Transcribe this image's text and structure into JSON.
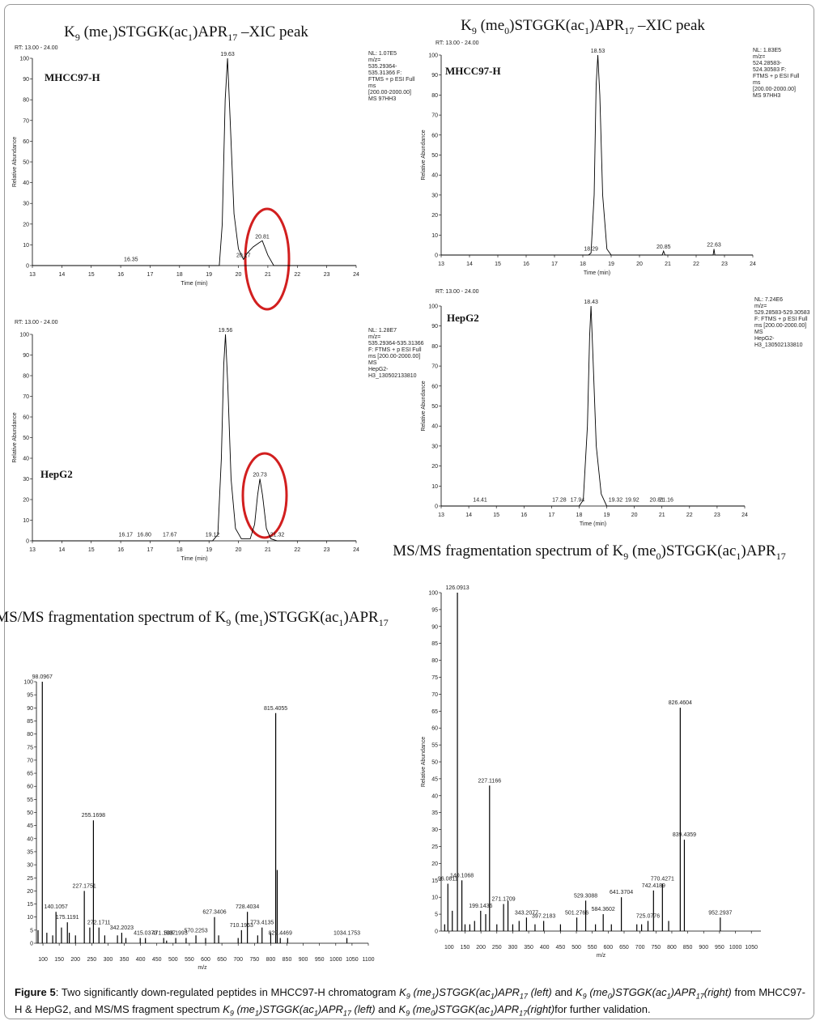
{
  "chart_data": [
    {
      "type": "line",
      "title": [
        "K",
        "9",
        " (me",
        "1",
        ")STGGK(ac",
        "1",
        ")APR",
        "17",
        " –XIC peak"
      ],
      "rt_label": "RT: 13.00 - 24.00",
      "sample": "MHCC97-H",
      "info": [
        "NL: 1.07E5",
        "m/z=",
        "535.29364-",
        "535.31366 F:",
        "FTMS + p ESI Full",
        "ms",
        "[200.00-2000.00]",
        "MS 97HH3"
      ],
      "x_label": "Time (min)",
      "y_label": "Relative Abundance",
      "x": [
        13,
        16.35,
        19.35,
        19.45,
        19.55,
        19.63,
        19.72,
        19.85,
        20.0,
        20.17,
        20.3,
        20.5,
        20.7,
        20.81,
        21.0,
        21.2,
        24
      ],
      "values": [
        0,
        0,
        0,
        20,
        80,
        100,
        70,
        25,
        8,
        3,
        6,
        9,
        11,
        12,
        5,
        0,
        0
      ],
      "color": "#000000",
      "xlim": [
        13,
        24
      ],
      "xticks": [
        13,
        14,
        15,
        16,
        17,
        18,
        19,
        20,
        21,
        22,
        23,
        24
      ],
      "ylim": [
        0,
        100
      ],
      "yticks": [
        0,
        10,
        20,
        30,
        40,
        50,
        60,
        70,
        80,
        90,
        100
      ],
      "annotations": [
        {
          "text": "19.63",
          "x": 19.63,
          "y": 100
        },
        {
          "text": "16.35",
          "x": 16.35,
          "y": 1
        },
        {
          "text": "20.17",
          "x": 20.17,
          "y": 3
        },
        {
          "text": "20.81",
          "x": 20.81,
          "y": 12
        }
      ]
    },
    {
      "type": "line",
      "title": [
        "K",
        "9",
        " (me",
        "0",
        ")STGGK(ac",
        "1",
        ")APR",
        "17",
        " –XIC peak"
      ],
      "rt_label": "RT: 13.00 - 24.00",
      "sample": "MHCC97-H",
      "info": [
        "NL: 1.83E5",
        "m/z=",
        "524.28583-",
        "524.30583 F:",
        "FTMS + p ESI Full",
        "ms",
        "[200.00-2000.00]",
        "MS 97HH3"
      ],
      "x_label": "Time (min)",
      "y_label": "Relative Abundance",
      "x": [
        13,
        18.2,
        18.29,
        18.4,
        18.47,
        18.53,
        18.6,
        18.7,
        18.85,
        19,
        20.8,
        20.85,
        20.9,
        22.6,
        22.63,
        22.66,
        24
      ],
      "values": [
        0,
        0,
        1,
        30,
        85,
        100,
        80,
        30,
        3,
        0,
        0,
        2,
        0,
        0,
        3,
        0,
        0
      ],
      "color": "#000000",
      "xlim": [
        13,
        24
      ],
      "xticks": [
        13,
        14,
        15,
        16,
        17,
        18,
        19,
        20,
        21,
        22,
        23,
        24
      ],
      "ylim": [
        0,
        100
      ],
      "yticks": [
        0,
        10,
        20,
        30,
        40,
        50,
        60,
        70,
        80,
        90,
        100
      ],
      "annotations": [
        {
          "text": "18.53",
          "x": 18.53,
          "y": 100
        },
        {
          "text": "18.29",
          "x": 18.29,
          "y": 1
        },
        {
          "text": "20.85",
          "x": 20.85,
          "y": 2
        },
        {
          "text": "22.63",
          "x": 22.63,
          "y": 3
        }
      ]
    },
    {
      "type": "line",
      "rt_label": "RT: 13.00 - 24.00",
      "sample": "HepG2",
      "info": [
        "NL: 1.28E7",
        "m/z=",
        "535.29364-535.31366",
        "F: FTMS + p ESI Full",
        "ms [200.00-2000.00]",
        "MS",
        "HepG2-",
        "H3_130502133810"
      ],
      "x_label": "Time (min)",
      "y_label": "Relative Abundance",
      "x": [
        13,
        19.12,
        19.3,
        19.42,
        19.5,
        19.56,
        19.64,
        19.75,
        19.9,
        20.1,
        20.4,
        20.55,
        20.65,
        20.73,
        20.82,
        20.95,
        21.1,
        21.32,
        24
      ],
      "values": [
        0,
        0,
        3,
        40,
        85,
        100,
        75,
        30,
        6,
        1,
        1,
        8,
        22,
        30,
        22,
        6,
        1,
        0,
        0
      ],
      "color": "#000000",
      "xlim": [
        13,
        24
      ],
      "xticks": [
        13,
        14,
        15,
        16,
        17,
        18,
        19,
        20,
        21,
        22,
        23,
        24
      ],
      "ylim": [
        0,
        100
      ],
      "yticks": [
        0,
        10,
        20,
        30,
        40,
        50,
        60,
        70,
        80,
        90,
        100
      ],
      "annotations": [
        {
          "text": "19.56",
          "x": 19.56,
          "y": 100
        },
        {
          "text": "20.73",
          "x": 20.73,
          "y": 30
        },
        {
          "text": "16.17",
          "x": 16.17,
          "y": 1
        },
        {
          "text": "16.80",
          "x": 16.8,
          "y": 1
        },
        {
          "text": "17.67",
          "x": 17.67,
          "y": 1
        },
        {
          "text": "19.12",
          "x": 19.12,
          "y": 1
        },
        {
          "text": "21.32",
          "x": 21.32,
          "y": 1
        }
      ]
    },
    {
      "type": "line",
      "rt_label": "RT: 13.00 - 24.00",
      "sample": "HepG2",
      "info": [
        "NL: 7.24E6",
        "m/z=",
        "529.28583-529.30583",
        "F: FTMS + p ESI Full",
        "ms [200.00-2000.00]",
        "MS",
        "HepG2-",
        "H3_130502133810"
      ],
      "x_label": "Time (min)",
      "y_label": "Relative Abundance",
      "x": [
        13,
        18.0,
        18.15,
        18.3,
        18.38,
        18.43,
        18.5,
        18.62,
        18.8,
        19.0,
        24
      ],
      "values": [
        0,
        0,
        3,
        40,
        85,
        100,
        75,
        30,
        6,
        0,
        0
      ],
      "color": "#000000",
      "xlim": [
        13,
        24
      ],
      "xticks": [
        13,
        14,
        15,
        16,
        17,
        18,
        19,
        20,
        21,
        22,
        23,
        24
      ],
      "ylim": [
        0,
        100
      ],
      "yticks": [
        0,
        10,
        20,
        30,
        40,
        50,
        60,
        70,
        80,
        90,
        100
      ],
      "annotations": [
        {
          "text": "18.43",
          "x": 18.43,
          "y": 100
        },
        {
          "text": "14.41",
          "x": 14.41,
          "y": 1
        },
        {
          "text": "17.28",
          "x": 17.28,
          "y": 1
        },
        {
          "text": "17.94",
          "x": 17.94,
          "y": 1
        },
        {
          "text": "19.32",
          "x": 19.32,
          "y": 1
        },
        {
          "text": "19.92",
          "x": 19.92,
          "y": 1
        },
        {
          "text": "20.81",
          "x": 20.81,
          "y": 1
        },
        {
          "text": "21.16",
          "x": 21.16,
          "y": 1
        }
      ]
    },
    {
      "type": "stem",
      "title": [
        "MS/MS fragmentation spectrum of K",
        "9",
        " (me",
        "1",
        ")STGGK(ac",
        "1",
        ")APR",
        "17"
      ],
      "x_label": "m/z",
      "color": "#000000",
      "xlim": [
        80,
        1100
      ],
      "xticks": [
        100,
        150,
        200,
        250,
        300,
        350,
        400,
        450,
        500,
        550,
        600,
        650,
        700,
        750,
        800,
        850,
        900,
        950,
        1000,
        1050,
        1100
      ],
      "ylim": [
        0,
        100
      ],
      "yticks": [
        0,
        5,
        10,
        15,
        20,
        25,
        30,
        35,
        40,
        45,
        50,
        55,
        60,
        65,
        70,
        75,
        80,
        85,
        90,
        95,
        100
      ],
      "series": [
        {
          "show_labels": true,
          "x": [
            98.0967,
            140.1057,
            175.1191,
            227.1751,
            255.1698,
            272.1711,
            342.2023,
            415.0373,
            471.1937,
            508.1993,
            570.2253,
            627.3406,
            710.1963,
            728.4034,
            773.4135,
            815.4055,
            829.4469,
            1034.1753
          ],
          "values": [
            100,
            12,
            8,
            20,
            47,
            6,
            4,
            2,
            2,
            2,
            3,
            10,
            5,
            12,
            6,
            88,
            2,
            2
          ]
        },
        {
          "show_labels": false,
          "x": [
            85,
            112,
            130,
            157,
            181,
            200,
            244,
            290,
            329,
            355,
            399,
            480,
            540,
            600,
            640,
            700,
            760,
            800,
            820,
            852
          ],
          "values": [
            5,
            4,
            3,
            6,
            4,
            3,
            6,
            3,
            3,
            2,
            2,
            1,
            2,
            2,
            3,
            2,
            3,
            4,
            28,
            2
          ]
        }
      ]
    },
    {
      "type": "stem",
      "title": [
        "MS/MS fragmentation spectrum of K",
        "9",
        " (me",
        "0",
        ")STGGK(ac",
        "1",
        ")APR",
        "17"
      ],
      "x_label": "m/z",
      "y_label": "Relative Abundance",
      "color": "#000000",
      "xlim": [
        75,
        1080
      ],
      "xticks": [
        100,
        150,
        200,
        250,
        300,
        350,
        400,
        450,
        500,
        550,
        600,
        650,
        700,
        750,
        800,
        850,
        900,
        950,
        1000,
        1050
      ],
      "ylim": [
        0,
        100
      ],
      "yticks": [
        0,
        5,
        10,
        15,
        20,
        25,
        30,
        35,
        40,
        45,
        50,
        55,
        60,
        65,
        70,
        75,
        80,
        85,
        90,
        95,
        100
      ],
      "series": [
        {
          "show_labels": true,
          "x": [
            96.0811,
            126.0913,
            140.1068,
            199.1436,
            227.1166,
            271.1709,
            343.2077,
            397.2183,
            501.2766,
            529.3088,
            584.3602,
            641.3704,
            725.0776,
            742.4189,
            770.4271,
            826.4604,
            839.4359,
            952.2937
          ],
          "values": [
            14,
            100,
            15,
            6,
            43,
            8,
            4,
            3,
            4,
            9,
            5,
            10,
            3,
            12,
            14,
            66,
            27,
            4
          ]
        },
        {
          "show_labels": false,
          "x": [
            86,
            110,
            150,
            165,
            180,
            215,
            250,
            285,
            300,
            320,
            370,
            450,
            560,
            610,
            690,
            705,
            790
          ],
          "values": [
            2,
            6,
            2,
            2,
            3,
            5,
            2,
            9,
            2,
            3,
            2,
            2,
            2,
            2,
            2,
            2,
            3
          ]
        }
      ]
    }
  ],
  "caption": [
    "Figure 5",
    ": Two significantly down-regulated peptides in MHCC97-H chromatogram ",
    "K",
    "9",
    " (me",
    "1",
    ")STGGK(ac",
    "1",
    ")APR",
    "17",
    " (left)",
    " and ",
    "K",
    "9",
    " (me",
    "0",
    ")STGGK(ac",
    "1",
    ")APR",
    "17",
    "(right)",
    " from MHCC97-H & HepG2, and MS/MS fragment spectrum ",
    "K",
    "9",
    " (me",
    "1",
    ")STGGK(ac",
    "1",
    ")APR",
    "17",
    " (left)",
    " and ",
    "K",
    "9",
    " (me",
    "0",
    ")STGGK(ac",
    "1",
    ")APR",
    "17",
    "(right)",
    "for further validation."
  ]
}
